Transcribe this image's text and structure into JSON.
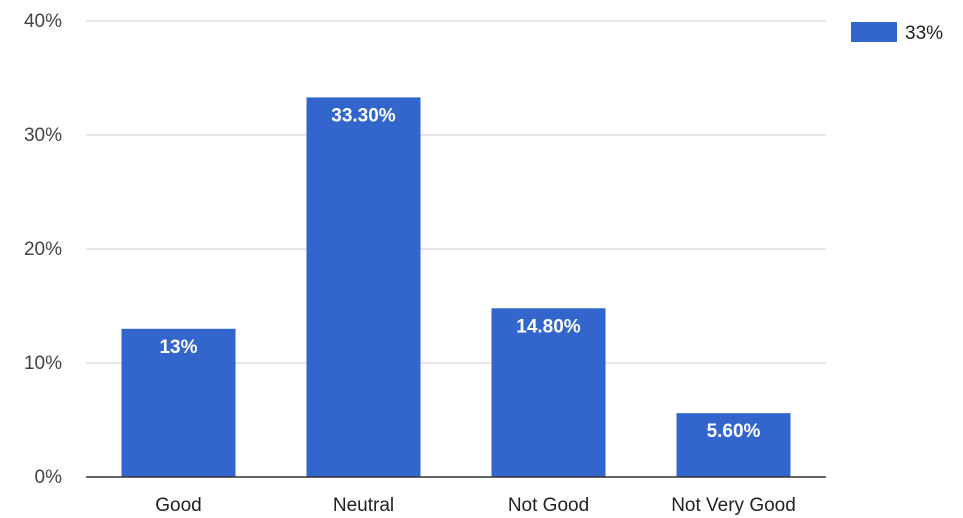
{
  "chart_data": {
    "type": "bar",
    "categories": [
      "Good",
      "Neutral",
      "Not Good",
      "Not Very Good"
    ],
    "series": [
      {
        "name": "33%",
        "values": [
          13,
          33.3,
          14.8,
          5.6
        ],
        "data_labels": [
          "13%",
          "33.30%",
          "14.80%",
          "5.60%"
        ],
        "color": "#3366cc"
      }
    ],
    "ylim": [
      0,
      40
    ],
    "yticks": [
      0,
      10,
      20,
      30,
      40
    ],
    "ytick_labels": [
      "0%",
      "10%",
      "20%",
      "30%",
      "40%"
    ],
    "title": "",
    "xlabel": "",
    "ylabel": "",
    "grid": true,
    "legend_position": "top-right"
  }
}
